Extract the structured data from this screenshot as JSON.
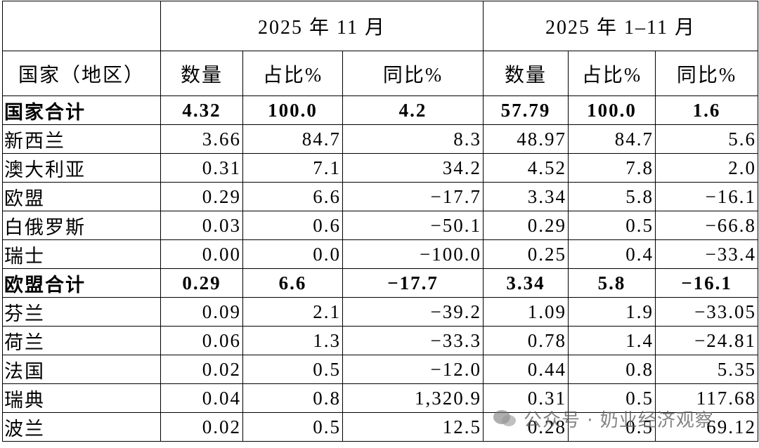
{
  "header": {
    "periods": [
      "2025 年 11 月",
      "2025 年 1–11 月"
    ],
    "columns": [
      "国家（地区）",
      "数量",
      "占比%",
      "同比%",
      "数量",
      "占比%",
      "同比%"
    ]
  },
  "table": {
    "rows": [
      [
        "国家合计",
        "4.32",
        "100.0",
        "4.2",
        "57.79",
        "100.0",
        "1.6"
      ],
      [
        "新西兰",
        "3.66",
        "84.7",
        "8.3",
        "48.97",
        "84.7",
        "5.6"
      ],
      [
        "澳大利亚",
        "0.31",
        "7.1",
        "34.2",
        "4.52",
        "7.8",
        "2.0"
      ],
      [
        "欧盟",
        "0.29",
        "6.6",
        "−17.7",
        "3.34",
        "5.8",
        "−16.1"
      ],
      [
        "白俄罗斯",
        "0.03",
        "0.6",
        "−50.1",
        "0.29",
        "0.5",
        "−66.8"
      ],
      [
        "瑞士",
        "0.00",
        "0.0",
        "−100.0",
        "0.25",
        "0.4",
        "−33.4"
      ],
      [
        "欧盟合计",
        "0.29",
        "6.6",
        "−17.7",
        "3.34",
        "5.8",
        "−16.1"
      ],
      [
        "芬兰",
        "0.09",
        "2.1",
        "−39.2",
        "1.09",
        "1.9",
        "−33.05"
      ],
      [
        "荷兰",
        "0.06",
        "1.3",
        "−33.3",
        "0.78",
        "1.4",
        "−24.81"
      ],
      [
        "法国",
        "0.02",
        "0.5",
        "−12.0",
        "0.44",
        "0.8",
        "5.35"
      ],
      [
        "瑞典",
        "0.04",
        "0.8",
        "1,320.9",
        "0.31",
        "0.5",
        "117.68"
      ],
      [
        "波兰",
        "0.02",
        "0.5",
        "12.5",
        "0.28",
        "0.5",
        "69.12"
      ]
    ]
  },
  "watermark": "公众号 · 奶业经济观察"
}
